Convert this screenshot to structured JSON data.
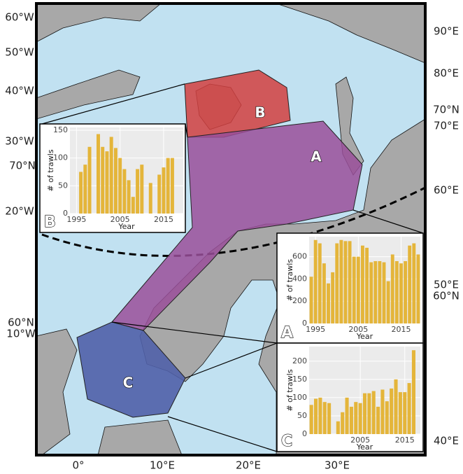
{
  "map": {
    "left_labels": [
      "60°W",
      "50°W",
      "40°W",
      "30°W",
      "70°N",
      "20°W",
      "60°N",
      "10°W"
    ],
    "right_labels": [
      "90°E",
      "80°E",
      "70°N",
      "70°E",
      "60°E",
      "50°E",
      "60°N",
      "40°E"
    ],
    "bottom_labels": [
      "0°",
      "10°E",
      "20°E",
      "30°E"
    ],
    "regions": [
      "A",
      "B",
      "C"
    ]
  },
  "insets": [
    {
      "type": "bar",
      "label": "B",
      "ylabel": "# of trawls",
      "xlabel": "Year",
      "color": "#e4b53a",
      "x": [
        1996,
        1997,
        1998,
        1999,
        2000,
        2001,
        2002,
        2003,
        2004,
        2005,
        2006,
        2007,
        2008,
        2009,
        2010,
        2011,
        2012,
        2013,
        2014,
        2015,
        2016,
        2017
      ],
      "values": [
        75,
        88,
        120,
        null,
        143,
        120,
        112,
        138,
        118,
        100,
        80,
        60,
        30,
        80,
        88,
        null,
        55,
        null,
        70,
        83,
        100,
        100
      ],
      "xlim": [
        1993.5,
        2019.5
      ],
      "xticks": [
        1995,
        2005,
        2015
      ],
      "ylim": [
        0,
        155
      ],
      "yticks": [
        0,
        50,
        100,
        150
      ]
    },
    {
      "type": "bar",
      "label": "A",
      "ylabel": "# of trawls",
      "xlabel": "Year",
      "color": "#e4b53a",
      "x": [
        1994,
        1995,
        1996,
        1997,
        1998,
        1999,
        2000,
        2001,
        2002,
        2003,
        2004,
        2005,
        2006,
        2007,
        2008,
        2009,
        2010,
        2011,
        2012,
        2013,
        2014,
        2015,
        2016,
        2017,
        2018,
        2019
      ],
      "values": [
        420,
        750,
        720,
        540,
        360,
        460,
        720,
        750,
        740,
        740,
        600,
        600,
        700,
        680,
        550,
        560,
        560,
        550,
        380,
        620,
        560,
        540,
        560,
        700,
        720,
        620
      ],
      "xlim": [
        1993.5,
        2019.5
      ],
      "xticks": [
        1995,
        2005,
        2015
      ],
      "ylim": [
        0,
        780
      ],
      "yticks": [
        0,
        200,
        400,
        600
      ]
    },
    {
      "type": "bar",
      "label": "C",
      "ylabel": "# of trawls",
      "xlabel": "Year",
      "color": "#e4b53a",
      "x": [
        1994,
        1995,
        1996,
        1997,
        1998,
        1999,
        2000,
        2001,
        2002,
        2003,
        2004,
        2005,
        2006,
        2007,
        2008,
        2009,
        2010,
        2011,
        2012,
        2013,
        2014,
        2015,
        2016,
        2017
      ],
      "values": [
        80,
        97,
        100,
        88,
        85,
        null,
        35,
        60,
        100,
        75,
        88,
        85,
        112,
        112,
        118,
        75,
        122,
        90,
        125,
        150,
        115,
        115,
        140,
        230
      ],
      "xlim": [
        1993.5,
        2018.5
      ],
      "xticks": [
        2005,
        2015
      ],
      "ylim": [
        0,
        240
      ],
      "yticks": [
        0,
        50,
        100,
        150,
        200
      ]
    }
  ]
}
